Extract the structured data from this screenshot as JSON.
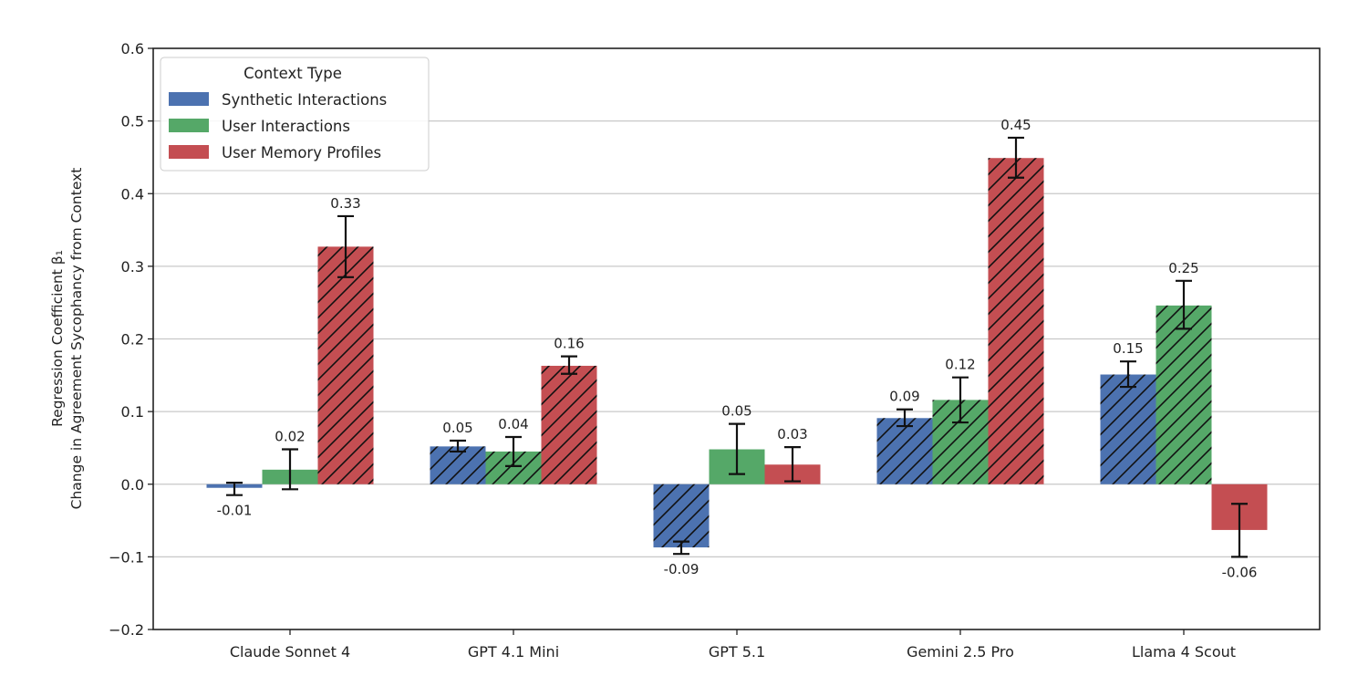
{
  "chart_data": {
    "type": "bar",
    "title": "",
    "xlabel": "",
    "ylabel_line1": "Regression Coefficient β₁",
    "ylabel_line2": "Change in Agreement Sycophancy from Context",
    "ylim": [
      -0.2,
      0.6
    ],
    "yticks": [
      -0.2,
      -0.1,
      0.0,
      0.1,
      0.2,
      0.3,
      0.4,
      0.5,
      0.6
    ],
    "ytick_labels": [
      "−0.2",
      "−0.1",
      "0.0",
      "0.1",
      "0.2",
      "0.3",
      "0.4",
      "0.5",
      "0.6"
    ],
    "grid": "horizontal",
    "categories": [
      "Claude Sonnet 4",
      "GPT 4.1 Mini",
      "GPT 5.1",
      "Gemini 2.5 Pro",
      "Llama 4 Scout"
    ],
    "legend": {
      "title": "Context Type",
      "placement": "top-left"
    },
    "hatch_meaning": "hatched bars are shown with diagonal hatching (statistically significant)",
    "series": [
      {
        "name": "Synthetic Interactions",
        "color": "#4c72b0",
        "values": [
          -0.005,
          0.052,
          -0.087,
          0.091,
          0.151
        ],
        "labels": [
          "-0.01",
          "0.05",
          "-0.09",
          "0.09",
          "0.15"
        ],
        "ci_low": [
          -0.015,
          0.045,
          -0.096,
          0.08,
          0.134
        ],
        "ci_high": [
          0.002,
          0.06,
          -0.079,
          0.103,
          0.169
        ],
        "hatched": [
          false,
          true,
          true,
          true,
          true
        ]
      },
      {
        "name": "User Interactions",
        "color": "#55a868",
        "values": [
          0.02,
          0.045,
          0.048,
          0.116,
          0.246
        ],
        "labels": [
          "0.02",
          "0.04",
          "0.05",
          "0.12",
          "0.25"
        ],
        "ci_low": [
          -0.007,
          0.025,
          0.014,
          0.085,
          0.214
        ],
        "ci_high": [
          0.048,
          0.065,
          0.083,
          0.147,
          0.28
        ],
        "hatched": [
          false,
          true,
          false,
          true,
          true
        ]
      },
      {
        "name": "User Memory Profiles",
        "color": "#c44e52",
        "values": [
          0.327,
          0.163,
          0.027,
          0.449,
          -0.063
        ],
        "labels": [
          "0.33",
          "0.16",
          "0.03",
          "0.45",
          "-0.06"
        ],
        "ci_low": [
          0.285,
          0.152,
          0.004,
          0.422,
          -0.1
        ],
        "ci_high": [
          0.369,
          0.176,
          0.051,
          0.477,
          -0.027
        ],
        "hatched": [
          true,
          true,
          false,
          true,
          false
        ]
      }
    ]
  }
}
